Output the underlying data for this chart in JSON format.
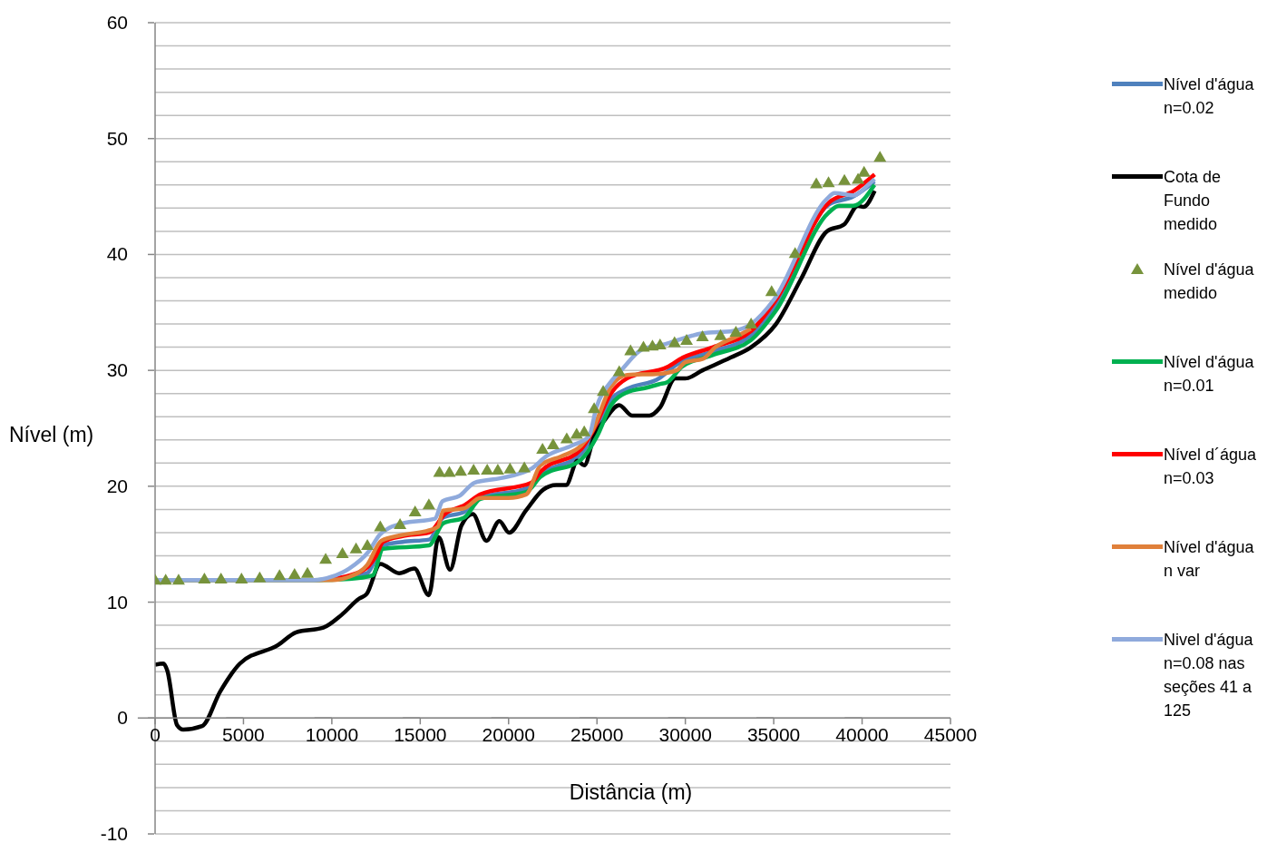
{
  "chart_data": {
    "type": "line",
    "xlabel": "Distância (m)",
    "ylabel": "Nível (m)",
    "xlim": [
      0,
      45000
    ],
    "ylim": [
      -10,
      60
    ],
    "xticks": [
      0,
      5000,
      10000,
      15000,
      20000,
      25000,
      30000,
      35000,
      40000,
      45000
    ],
    "yticks": [
      -10,
      {
        "value": -8,
        "label": null
      },
      {
        "value": -6,
        "label": null
      },
      {
        "value": -4,
        "label": null
      },
      {
        "value": -2,
        "label": null
      },
      0,
      {
        "value": 2,
        "label": null
      },
      {
        "value": 4,
        "label": null
      },
      {
        "value": 6,
        "label": null
      },
      {
        "value": 8,
        "label": null
      },
      10,
      {
        "value": 12,
        "label": null
      },
      {
        "value": 14,
        "label": null
      },
      {
        "value": 16,
        "label": null
      },
      {
        "value": 18,
        "label": null
      },
      20,
      {
        "value": 22,
        "label": null
      },
      {
        "value": 24,
        "label": null
      },
      {
        "value": 26,
        "label": null
      },
      {
        "value": 28,
        "label": null
      },
      30,
      {
        "value": 32,
        "label": null
      },
      {
        "value": 34,
        "label": null
      },
      {
        "value": 36,
        "label": null
      },
      {
        "value": 38,
        "label": null
      },
      40,
      {
        "value": 42,
        "label": null
      },
      {
        "value": 44,
        "label": null
      },
      {
        "value": 46,
        "label": null
      },
      {
        "value": 48,
        "label": null
      },
      50,
      {
        "value": 52,
        "label": null
      },
      {
        "value": 54,
        "label": null
      },
      {
        "value": 56,
        "label": null
      },
      {
        "value": 58,
        "label": null
      },
      60
    ],
    "grid": "y",
    "legend": "right",
    "marker": "none",
    "series": [
      {
        "name": "Nível d'água n=0.02",
        "color": "#4f81bd",
        "x": [
          0,
          9000,
          10000,
          11000,
          12000,
          12900,
          14000,
          15500,
          16300,
          17500,
          18400,
          21000,
          21800,
          24100,
          25000,
          25800,
          26700,
          28500,
          29500,
          31500,
          33700,
          35100,
          38100,
          39500,
          40700
        ],
        "values": [
          11.9,
          11.9,
          12.0,
          12.2,
          12.5,
          14.9,
          15.2,
          15.4,
          17.3,
          17.8,
          19.0,
          19.8,
          21.0,
          22.8,
          25.0,
          27.5,
          28.4,
          29.3,
          30.5,
          31.6,
          33.0,
          35.6,
          44.3,
          45.0,
          46.3
        ]
      },
      {
        "name": "Cota de Fundo medido",
        "color": "#000000",
        "x": [
          0,
          470,
          690,
          1240,
          1590,
          2660,
          3690,
          4800,
          6950,
          7980,
          9520,
          10550,
          11540,
          11970,
          12740,
          13810,
          14670,
          15490,
          16040,
          16690,
          17330,
          17970,
          18750,
          19480,
          20030,
          20980,
          21960,
          22690,
          23250,
          23900,
          24280,
          24840,
          25480,
          26260,
          26980,
          27970,
          28570,
          29430,
          29990,
          30970,
          32560,
          33720,
          35130,
          36550,
          38010,
          38990,
          39770,
          40070,
          40710
        ],
        "values": [
          4.6,
          4.7,
          4.1,
          -0.6,
          -1.0,
          -0.7,
          2.3,
          4.7,
          6.3,
          7.4,
          7.8,
          8.9,
          10.3,
          10.7,
          13.3,
          12.5,
          12.9,
          10.6,
          15.6,
          12.8,
          16.6,
          17.6,
          15.3,
          17.0,
          16.0,
          17.9,
          19.7,
          20.1,
          20.1,
          22.2,
          21.8,
          24.3,
          25.8,
          27.0,
          26.1,
          26.1,
          26.8,
          29.3,
          29.3,
          30.0,
          31.1,
          32.0,
          34.0,
          37.9,
          42.0,
          42.6,
          44.2,
          44.1,
          45.5
        ]
      },
      {
        "name": "Nível d'água medido",
        "type": "scatter",
        "marker": "triangle",
        "color": "#77933c",
        "x": [
          0,
          600,
          1330,
          2790,
          3730,
          4890,
          5920,
          7040,
          7890,
          8620,
          9650,
          10600,
          11370,
          12010,
          12740,
          13860,
          14710,
          15490,
          16090,
          16650,
          17290,
          18020,
          18790,
          19390,
          20080,
          20890,
          21920,
          22520,
          23290,
          23850,
          24280,
          24840,
          25350,
          26260,
          26900,
          27630,
          28140,
          28570,
          29390,
          30070,
          30970,
          31990,
          32860,
          33720,
          34880,
          36210,
          37410,
          38100,
          39000,
          39770,
          40110,
          41010
        ],
        "values": [
          11.9,
          11.9,
          11.9,
          12.0,
          12.0,
          12.0,
          12.1,
          12.3,
          12.4,
          12.5,
          13.7,
          14.2,
          14.6,
          14.9,
          16.5,
          16.7,
          17.8,
          18.4,
          21.2,
          21.2,
          21.3,
          21.4,
          21.4,
          21.4,
          21.5,
          21.6,
          23.2,
          23.6,
          24.1,
          24.5,
          24.7,
          26.7,
          28.2,
          29.9,
          31.7,
          32.0,
          32.1,
          32.2,
          32.4,
          32.6,
          32.9,
          33.0,
          33.3,
          34.0,
          36.8,
          40.1,
          46.1,
          46.2,
          46.4,
          46.5,
          47.1,
          48.4
        ]
      },
      {
        "name": "Nível d'água n=0.01",
        "color": "#00b050",
        "x": [
          0,
          9000,
          11000,
          12300,
          12900,
          15500,
          16300,
          17500,
          18400,
          21000,
          21800,
          24100,
          25000,
          25800,
          26700,
          27800,
          28500,
          29000,
          29800,
          31500,
          33700,
          35100,
          38100,
          38700,
          39500,
          40700
        ],
        "values": [
          11.9,
          11.9,
          12.0,
          12.3,
          14.6,
          14.9,
          16.8,
          17.3,
          18.9,
          19.5,
          20.8,
          22.3,
          24.3,
          27.0,
          28.1,
          28.5,
          28.8,
          29.0,
          30.3,
          31.3,
          32.6,
          35.1,
          43.6,
          44.2,
          44.2,
          46.0
        ]
      },
      {
        "name": "Nível d´água n=0.03",
        "color": "#ff0000",
        "x": [
          10000,
          11000,
          12000,
          12500,
          12900,
          14000,
          15500,
          16390,
          17550,
          18400,
          21280,
          21840,
          24110,
          24710,
          25830,
          26690,
          29000,
          29860,
          31570,
          33720,
          35130,
          38140,
          39550,
          40710
        ],
        "values": [
          12.0,
          12.3,
          13.0,
          14.0,
          15.2,
          15.7,
          16.0,
          17.6,
          18.4,
          19.3,
          20.3,
          21.3,
          23.2,
          24.6,
          28.1,
          29.3,
          30.3,
          31.1,
          32.0,
          33.4,
          36.1,
          44.5,
          45.5,
          46.9
        ]
      },
      {
        "name": "Nível d'água n var",
        "color": "#e0803a",
        "x": [
          0,
          10000,
          11000,
          12000,
          12800,
          14000,
          15500,
          16000,
          16300,
          17500,
          18400,
          20000,
          21000,
          21800,
          23000,
          24100,
          24700,
          25800,
          26700,
          28500,
          29500,
          30000,
          31000,
          31700,
          33000,
          33700
        ],
        "values": [
          11.9,
          11.9,
          12.2,
          13.2,
          15.3,
          15.8,
          16.2,
          16.5,
          17.9,
          18.1,
          19.0,
          19.0,
          19.3,
          21.8,
          22.6,
          23.5,
          24.7,
          28.6,
          29.6,
          29.7,
          30.0,
          30.7,
          31.0,
          32.0,
          33.0,
          33.6
        ]
      },
      {
        "name": "Nivel d'água n=0.08 nas seções 41 a 125",
        "color": "#8faadc",
        "x": [
          0,
          9000,
          10000,
          10980,
          12100,
          12700,
          13130,
          14000,
          15830,
          16260,
          17250,
          18060,
          19560,
          21280,
          22140,
          23550,
          24540,
          24970,
          25830,
          26430,
          27540,
          28700,
          30970,
          32690,
          33720,
          35010,
          38010,
          38440,
          39550,
          40410,
          40710
        ],
        "values": [
          11.9,
          11.9,
          12.2,
          12.9,
          14.4,
          15.8,
          16.3,
          16.8,
          17.2,
          18.7,
          19.2,
          20.3,
          20.7,
          21.5,
          22.6,
          23.5,
          24.3,
          26.8,
          29.1,
          30.1,
          31.8,
          32.2,
          33.2,
          33.4,
          34.0,
          36.1,
          44.8,
          45.3,
          45.1,
          46.1,
          46.5
        ]
      }
    ]
  }
}
